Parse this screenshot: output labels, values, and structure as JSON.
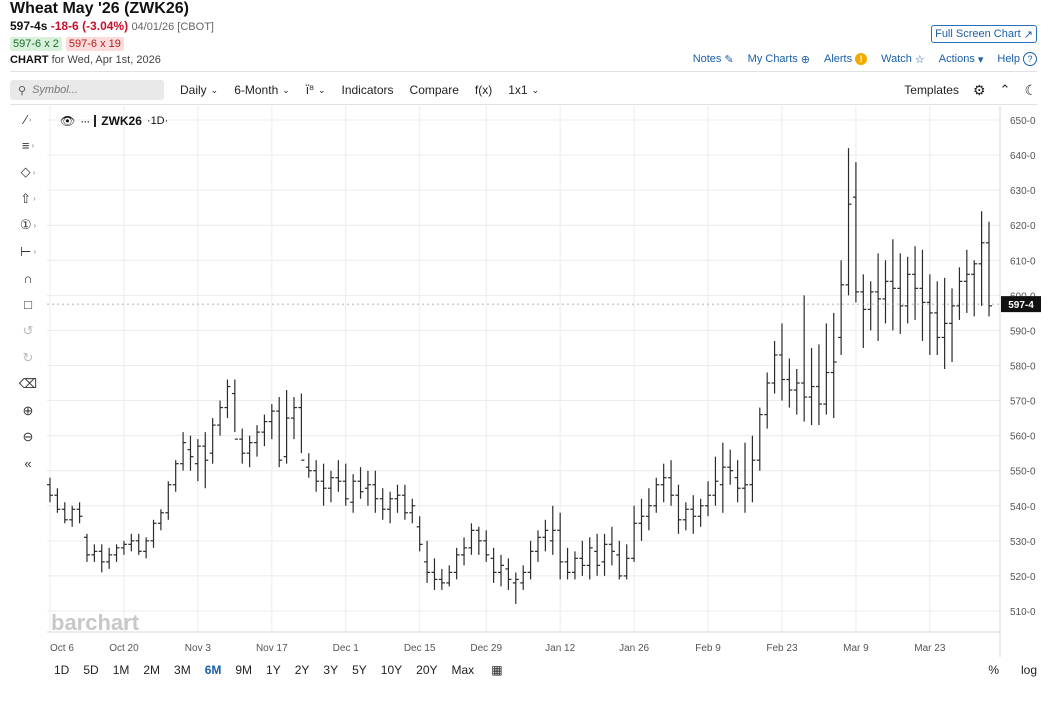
{
  "header": {
    "title": "Wheat May '26 (ZWK26)",
    "last": "597-4s",
    "change": "-18-6 (-3.04%)",
    "date_exchange": "04/01/26 [CBOT]",
    "bid": "597-6 x 2",
    "ask": "597-6 x 19",
    "chart_label": "CHART",
    "chart_for": "for Wed, Apr 1st, 2026",
    "full_screen": "Full Screen Chart"
  },
  "links": {
    "notes": "Notes",
    "my_charts": "My Charts",
    "alerts": "Alerts",
    "watch": "Watch",
    "actions": "Actions",
    "help": "Help"
  },
  "toolbar": {
    "search_placeholder": "Symbol...",
    "interval": "Daily",
    "period": "6-Month",
    "indicators": "Indicators",
    "compare": "Compare",
    "fx": "f(x)",
    "layout": "1x1",
    "templates": "Templates"
  },
  "symbol_label": {
    "symbol": "ZWK26",
    "interval": "·1D·"
  },
  "watermark": "barchart",
  "current_price_label": "597-4",
  "ranges": [
    "1D",
    "5D",
    "1M",
    "2M",
    "3M",
    "6M",
    "9M",
    "1Y",
    "2Y",
    "3Y",
    "5Y",
    "10Y",
    "20Y",
    "Max"
  ],
  "active_range": "6M",
  "bottom_right": {
    "pct": "%",
    "log": "log"
  },
  "colors": {
    "bars": "#2b2b2b",
    "accent": "#1b5fa8",
    "down": "#c8102e",
    "grid": "#ececec"
  },
  "chart_data": {
    "type": "ohlc",
    "y_ticks": [
      650,
      640,
      630,
      620,
      610,
      600,
      590,
      580,
      570,
      560,
      550,
      540,
      530,
      520,
      510
    ],
    "y_tick_labels": [
      "650-0",
      "640-0",
      "630-0",
      "620-0",
      "610-0",
      "600-0",
      "590-0",
      "580-0",
      "570-0",
      "560-0",
      "550-0",
      "540-0",
      "530-0",
      "520-0",
      "510-0"
    ],
    "ylim": [
      504,
      654
    ],
    "x_tick_labels": [
      "Oct 6",
      "Oct 20",
      "Nov 3",
      "Nov 17",
      "Dec 1",
      "Dec 15",
      "Dec 29",
      "Jan 12",
      "Jan 26",
      "Feb 9",
      "Feb 23",
      "Mar 9",
      "Mar 23"
    ],
    "x_tick_index": [
      0,
      10,
      20,
      30,
      40,
      50,
      59,
      69,
      79,
      89,
      99,
      109,
      119
    ],
    "last_price": 597.5,
    "bars": [
      [
        546,
        548,
        541,
        543
      ],
      [
        543,
        545,
        538,
        539
      ],
      [
        539,
        541,
        535,
        536
      ],
      [
        536,
        540,
        534,
        539
      ],
      [
        539,
        541,
        535,
        537
      ],
      [
        531,
        532,
        524,
        526
      ],
      [
        526,
        529,
        524,
        527
      ],
      [
        527,
        529,
        521,
        524
      ],
      [
        524,
        528,
        522,
        526
      ],
      [
        526,
        529,
        524,
        528
      ],
      [
        528,
        530,
        526,
        529
      ],
      [
        529,
        532,
        527,
        530
      ],
      [
        530,
        532,
        526,
        527
      ],
      [
        527,
        531,
        525,
        530
      ],
      [
        530,
        536,
        528,
        535
      ],
      [
        535,
        539,
        533,
        538
      ],
      [
        538,
        547,
        536,
        546
      ],
      [
        546,
        553,
        544,
        552
      ],
      [
        552,
        561,
        550,
        558
      ],
      [
        556,
        560,
        550,
        554
      ],
      [
        552,
        559,
        547,
        557
      ],
      [
        557,
        561,
        545,
        553
      ],
      [
        555,
        565,
        552,
        563
      ],
      [
        563,
        570,
        560,
        568
      ],
      [
        568,
        576,
        565,
        574
      ],
      [
        572,
        576,
        561,
        559
      ],
      [
        559,
        562,
        552,
        555
      ],
      [
        555,
        560,
        551,
        558
      ],
      [
        558,
        563,
        554,
        561
      ],
      [
        561,
        566,
        557,
        564
      ],
      [
        564,
        569,
        559,
        567
      ],
      [
        567,
        571,
        551,
        553
      ],
      [
        554,
        573,
        552,
        565
      ],
      [
        565,
        571,
        559,
        568
      ],
      [
        568,
        572,
        555,
        553
      ],
      [
        551,
        555,
        548,
        550
      ],
      [
        550,
        553,
        544,
        547
      ],
      [
        547,
        552,
        540,
        545
      ],
      [
        545,
        550,
        541,
        548
      ],
      [
        548,
        553,
        544,
        547
      ],
      [
        547,
        552,
        540,
        542
      ],
      [
        541,
        549,
        538,
        547
      ],
      [
        547,
        551,
        542,
        544
      ],
      [
        545,
        550,
        540,
        546
      ],
      [
        546,
        550,
        538,
        542
      ],
      [
        542,
        545,
        536,
        539
      ],
      [
        539,
        544,
        535,
        542
      ],
      [
        542,
        546,
        538,
        543
      ],
      [
        543,
        546,
        536,
        538
      ],
      [
        538,
        542,
        535,
        540
      ],
      [
        534,
        537,
        527,
        529
      ],
      [
        524,
        530,
        518,
        521
      ],
      [
        521,
        525,
        516,
        519
      ],
      [
        519,
        522,
        516,
        518
      ],
      [
        518,
        523,
        517,
        521
      ],
      [
        521,
        528,
        519,
        526
      ],
      [
        526,
        531,
        523,
        528
      ],
      [
        528,
        535,
        526,
        533
      ],
      [
        533,
        534,
        526,
        530
      ],
      [
        530,
        533,
        524,
        526
      ],
      [
        525,
        528,
        518,
        521
      ],
      [
        521,
        526,
        517,
        523
      ],
      [
        522,
        525,
        516,
        519
      ],
      [
        518,
        521,
        512,
        519
      ],
      [
        518,
        523,
        516,
        521
      ],
      [
        521,
        530,
        519,
        527
      ],
      [
        527,
        533,
        524,
        531
      ],
      [
        531,
        536,
        527,
        533
      ],
      [
        530,
        540,
        526,
        533
      ],
      [
        533,
        538,
        519,
        524
      ],
      [
        524,
        528,
        519,
        521
      ],
      [
        521,
        527,
        519,
        525
      ],
      [
        525,
        530,
        520,
        523
      ],
      [
        523,
        531,
        519,
        528
      ],
      [
        527,
        532,
        520,
        523
      ],
      [
        524,
        532,
        520,
        529
      ],
      [
        529,
        534,
        523,
        527
      ],
      [
        526,
        530,
        519,
        520
      ],
      [
        520,
        529,
        519,
        525
      ],
      [
        525,
        540,
        524,
        535
      ],
      [
        535,
        542,
        530,
        537
      ],
      [
        537,
        545,
        533,
        540
      ],
      [
        540,
        548,
        538,
        546
      ],
      [
        546,
        552,
        541,
        548
      ],
      [
        548,
        553,
        540,
        543
      ],
      [
        543,
        546,
        532,
        536
      ],
      [
        536,
        541,
        533,
        539
      ],
      [
        539,
        543,
        532,
        537
      ],
      [
        537,
        542,
        534,
        540
      ],
      [
        540,
        547,
        537,
        543
      ],
      [
        543,
        554,
        540,
        547
      ],
      [
        546,
        558,
        538,
        551
      ],
      [
        551,
        556,
        546,
        550
      ],
      [
        548,
        553,
        541,
        545
      ],
      [
        545,
        558,
        538,
        546
      ],
      [
        546,
        560,
        541,
        553
      ],
      [
        553,
        568,
        550,
        566
      ],
      [
        566,
        578,
        562,
        575
      ],
      [
        575,
        587,
        572,
        583
      ],
      [
        583,
        592,
        570,
        576
      ],
      [
        576,
        582,
        568,
        573
      ],
      [
        573,
        579,
        566,
        575
      ],
      [
        575,
        600,
        564,
        571
      ],
      [
        571,
        585,
        563,
        574
      ],
      [
        574,
        586,
        563,
        569
      ],
      [
        569,
        592,
        566,
        578
      ],
      [
        578,
        595,
        565,
        581
      ],
      [
        588,
        610,
        583,
        603
      ],
      [
        603,
        642,
        600,
        626
      ],
      [
        628,
        638,
        598,
        601
      ],
      [
        601,
        606,
        585,
        596
      ],
      [
        596,
        604,
        590,
        601
      ],
      [
        601,
        612,
        587,
        599
      ],
      [
        599,
        610,
        592,
        604
      ],
      [
        604,
        616,
        590,
        602
      ],
      [
        602,
        612,
        589,
        597
      ],
      [
        597,
        611,
        592,
        606
      ],
      [
        606,
        614,
        593,
        602
      ],
      [
        602,
        613,
        587,
        598
      ],
      [
        598,
        606,
        583,
        595
      ],
      [
        595,
        604,
        583,
        588
      ],
      [
        588,
        605,
        579,
        592
      ],
      [
        592,
        602,
        581,
        597
      ],
      [
        597,
        608,
        593,
        604
      ],
      [
        604,
        613,
        595,
        606
      ],
      [
        606,
        610,
        594,
        609
      ],
      [
        609,
        624,
        597,
        615
      ],
      [
        615,
        621,
        594,
        597
      ]
    ]
  }
}
